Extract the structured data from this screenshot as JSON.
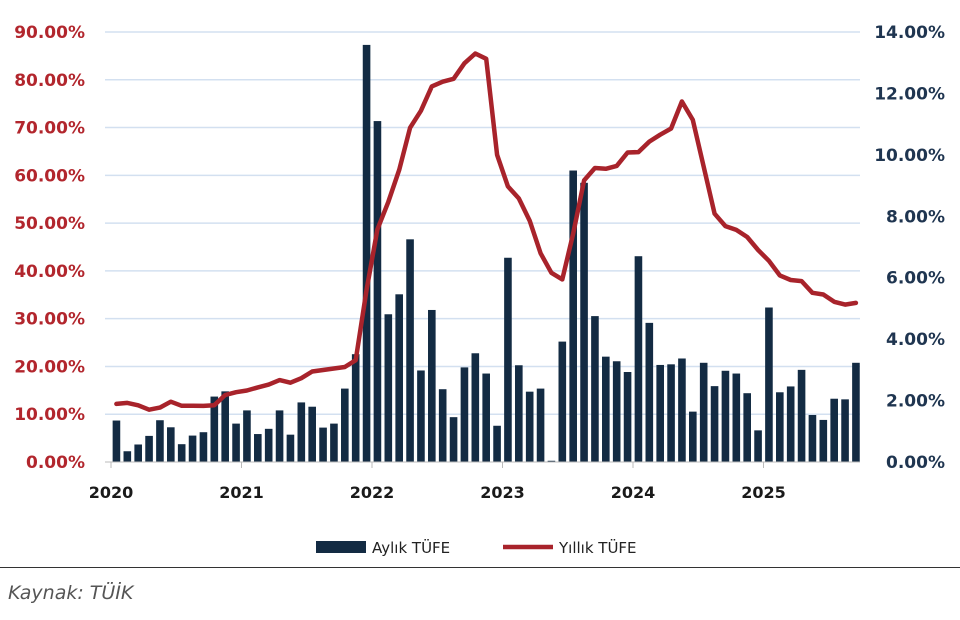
{
  "chart_data": {
    "type": "bar+line",
    "x_ticks": [
      "2020",
      "2021",
      "2022",
      "2023",
      "2024",
      "2025"
    ],
    "left_axis": {
      "ticks": [
        "0.00%",
        "10.00%",
        "20.00%",
        "30.00%",
        "40.00%",
        "50.00%",
        "60.00%",
        "70.00%",
        "80.00%",
        "90.00%"
      ],
      "range": [
        0,
        90
      ],
      "color": "#b2262d"
    },
    "right_axis": {
      "ticks": [
        "0.00%",
        "2.00%",
        "4.00%",
        "6.00%",
        "8.00%",
        "10.00%",
        "12.00%",
        "14.00%"
      ],
      "range": [
        0,
        14
      ],
      "color": "#1f3550"
    },
    "grid": true,
    "legend_position": "bottom",
    "series": [
      {
        "name": "Aylık TÜFE",
        "type": "bar",
        "axis": "right",
        "color": "#132b43",
        "values": [
          1.35,
          0.35,
          0.57,
          0.85,
          1.36,
          1.13,
          0.58,
          0.86,
          0.97,
          2.13,
          2.3,
          1.25,
          1.68,
          0.91,
          1.08,
          1.68,
          0.89,
          1.94,
          1.8,
          1.12,
          1.25,
          2.39,
          3.51,
          13.58,
          11.1,
          4.81,
          5.46,
          7.25,
          2.98,
          4.95,
          2.37,
          1.46,
          3.08,
          3.54,
          2.88,
          1.18,
          6.65,
          3.15,
          2.29,
          2.39,
          0.04,
          3.92,
          9.49,
          9.09,
          4.75,
          3.43,
          3.28,
          2.93,
          6.7,
          4.53,
          3.16,
          3.18,
          3.37,
          1.64,
          3.23,
          2.47,
          2.97,
          2.88,
          2.24,
          1.03,
          5.03,
          2.27,
          2.46,
          3.0,
          1.53,
          1.37,
          2.06,
          2.04,
          3.23
        ]
      },
      {
        "name": "Yıllık TÜFE",
        "type": "line",
        "axis": "left",
        "color": "#a8232b",
        "values": [
          12.15,
          12.37,
          11.86,
          10.94,
          11.39,
          12.62,
          11.76,
          11.77,
          11.75,
          11.89,
          14.03,
          14.6,
          14.97,
          15.61,
          16.19,
          17.14,
          16.59,
          17.53,
          18.95,
          19.25,
          19.58,
          19.89,
          21.31,
          36.08,
          48.69,
          54.44,
          61.14,
          69.97,
          73.5,
          78.62,
          79.6,
          80.21,
          83.45,
          85.51,
          84.39,
          64.27,
          57.68,
          55.18,
          50.51,
          43.68,
          39.59,
          38.21,
          47.83,
          58.94,
          61.53,
          61.36,
          61.98,
          64.77,
          64.86,
          67.07,
          68.5,
          69.8,
          75.45,
          71.6,
          61.78,
          51.97,
          49.38,
          48.58,
          47.09,
          44.38,
          42.12,
          39.05,
          38.1,
          37.86,
          35.41,
          35.05,
          33.52,
          32.95,
          33.29
        ]
      }
    ]
  },
  "footer": {
    "source": "Kaynak: TÜİK"
  }
}
